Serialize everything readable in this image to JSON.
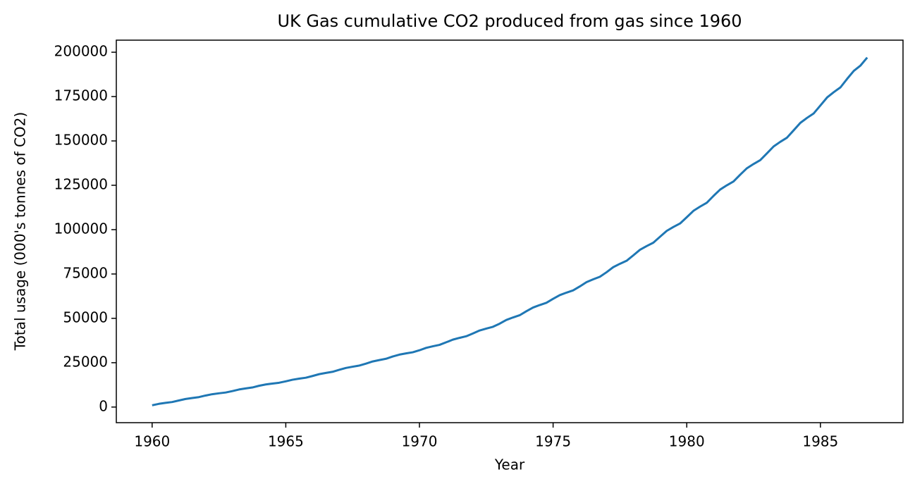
{
  "chart_data": {
    "type": "line",
    "title": "UK Gas cumulative CO2 produced from gas since 1960",
    "x_label": "Year",
    "y_label": "Total usage (000's tonnes of CO2)",
    "color": "#1f77b4",
    "grid": false,
    "x": [
      1960,
      1960.25,
      1960.5,
      1960.75,
      1961,
      1961.25,
      1961.5,
      1961.75,
      1962,
      1962.25,
      1962.5,
      1962.75,
      1963,
      1963.25,
      1963.5,
      1963.75,
      1964,
      1964.25,
      1964.5,
      1964.75,
      1965,
      1965.25,
      1965.5,
      1965.75,
      1966,
      1966.25,
      1966.5,
      1966.75,
      1967,
      1967.25,
      1967.5,
      1967.75,
      1968,
      1968.25,
      1968.5,
      1968.75,
      1969,
      1969.25,
      1969.5,
      1969.75,
      1970,
      1970.25,
      1970.5,
      1970.75,
      1971,
      1971.25,
      1971.5,
      1971.75,
      1972,
      1972.25,
      1972.5,
      1972.75,
      1973,
      1973.25,
      1973.5,
      1973.75,
      1974,
      1974.25,
      1974.5,
      1974.75,
      1975,
      1975.25,
      1975.5,
      1975.75,
      1976,
      1976.25,
      1976.5,
      1976.75,
      1977,
      1977.25,
      1977.5,
      1977.75,
      1978,
      1978.25,
      1978.5,
      1978.75,
      1979,
      1979.25,
      1979.5,
      1979.75,
      1980,
      1980.25,
      1980.5,
      1980.75,
      1981,
      1981.25,
      1981.5,
      1981.75,
      1982,
      1982.25,
      1982.5,
      1982.75,
      1983,
      1983.25,
      1983.5,
      1983.75,
      1984,
      1984.25,
      1984.5,
      1984.75,
      1985,
      1985.25,
      1985.5,
      1985.75,
      1986,
      1986.25,
      1986.5,
      1986.75
    ],
    "values": [
      1000,
      1810,
      2350,
      2836,
      3700,
      4540,
      5100,
      5604,
      6500,
      7250,
      7750,
      8200,
      9000,
      9900,
      10500,
      11040,
      12000,
      12750,
      13250,
      13700,
      14500,
      15400,
      16000,
      16540,
      17500,
      18550,
      19250,
      19880,
      21000,
      22050,
      22750,
      23380,
      24500,
      25700,
      26500,
      27220,
      28500,
      29550,
      30250,
      30880,
      32000,
      33350,
      34250,
      35060,
      36500,
      38000,
      39000,
      39900,
      41500,
      43150,
      44250,
      45240,
      47000,
      49100,
      50500,
      51760,
      54000,
      56100,
      57500,
      58760,
      61000,
      63100,
      64500,
      65760,
      68000,
      70400,
      72000,
      73440,
      76000,
      78850,
      80750,
      82460,
      85500,
      88650,
      90750,
      92640,
      96000,
      99300,
      101500,
      103480,
      107000,
      110600,
      113000,
      115160,
      119000,
      122600,
      125000,
      127160,
      131000,
      134600,
      137000,
      139160,
      143000,
      146900,
      149500,
      151840,
      156000,
      160200,
      163000,
      165520,
      170000,
      174500,
      177500,
      180200,
      185000,
      189500,
      192500,
      197000
    ],
    "xlim": [
      1958.66,
      1988.09
    ],
    "ylim": [
      -8800,
      206800
    ],
    "xticks": [
      1960,
      1965,
      1970,
      1975,
      1980,
      1985
    ],
    "yticks": [
      0,
      25000,
      50000,
      75000,
      100000,
      125000,
      150000,
      175000,
      200000
    ]
  }
}
